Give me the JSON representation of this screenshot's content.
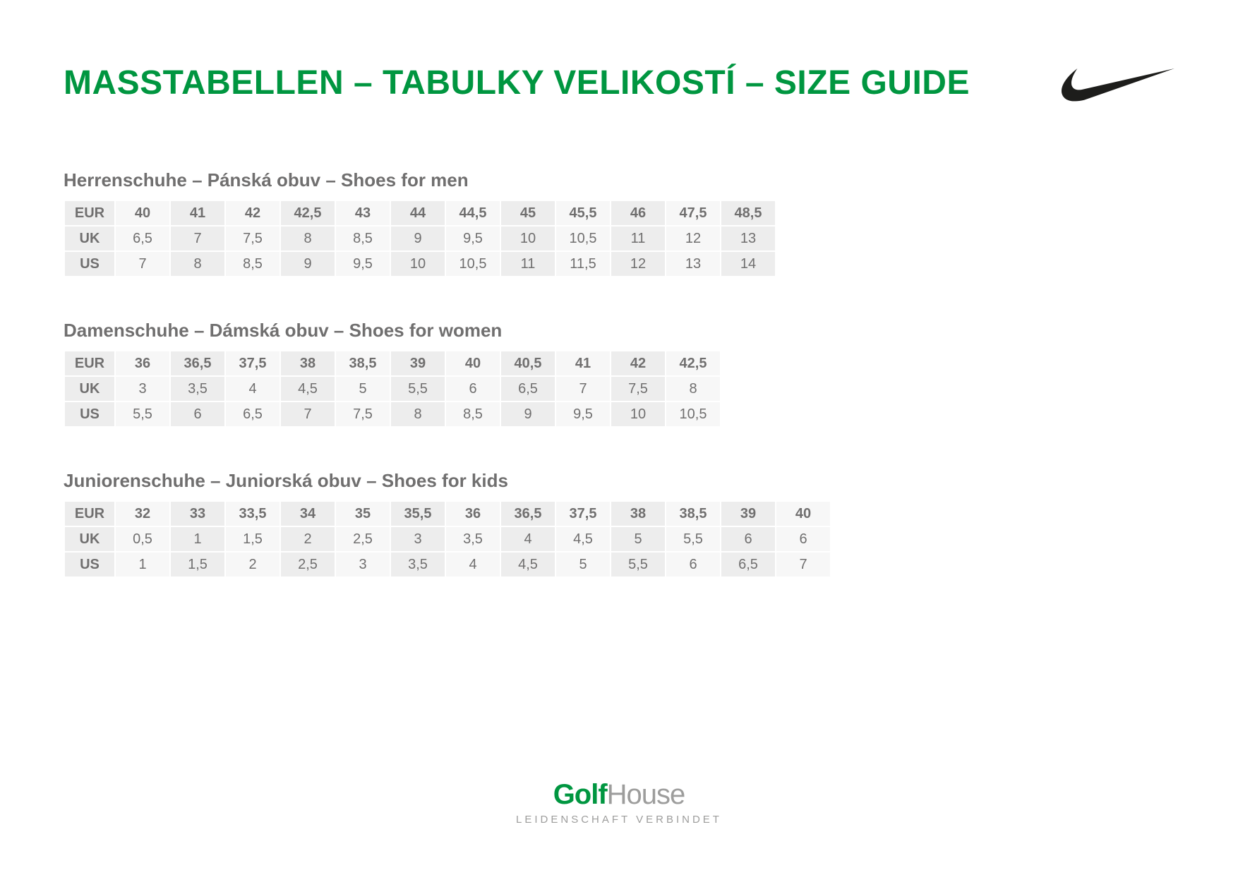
{
  "colors": {
    "accent_green": "#009640",
    "text_dark": "#706f6f",
    "text_gray": "#706f6f",
    "cell_bg_a": "#ededed",
    "cell_bg_b": "#f7f7f7",
    "footer_gray": "#9d9d9c",
    "swoosh": "#1d1d1b"
  },
  "title": "MASSTABELLEN – TABULKY VELIKOSTÍ – SIZE GUIDE",
  "tables": [
    {
      "title": "Herrenschuhe – Pánská obuv – Shoes for men",
      "rows": [
        [
          "EUR",
          "40",
          "41",
          "42",
          "42,5",
          "43",
          "44",
          "44,5",
          "45",
          "45,5",
          "46",
          "47,5",
          "48,5"
        ],
        [
          "UK",
          "6,5",
          "7",
          "7,5",
          "8",
          "8,5",
          "9",
          "9,5",
          "10",
          "10,5",
          "11",
          "12",
          "13"
        ],
        [
          "US",
          "7",
          "8",
          "8,5",
          "9",
          "9,5",
          "10",
          "10,5",
          "11",
          "11,5",
          "12",
          "13",
          "14"
        ]
      ]
    },
    {
      "title": "Damenschuhe – Dámská obuv – Shoes for women",
      "rows": [
        [
          "EUR",
          "36",
          "36,5",
          "37,5",
          "38",
          "38,5",
          "39",
          "40",
          "40,5",
          "41",
          "42",
          "42,5"
        ],
        [
          "UK",
          "3",
          "3,5",
          "4",
          "4,5",
          "5",
          "5,5",
          "6",
          "6,5",
          "7",
          "7,5",
          "8"
        ],
        [
          "US",
          "5,5",
          "6",
          "6,5",
          "7",
          "7,5",
          "8",
          "8,5",
          "9",
          "9,5",
          "10",
          "10,5"
        ]
      ]
    },
    {
      "title": "Juniorenschuhe – Juniorská obuv – Shoes for kids",
      "rows": [
        [
          "EUR",
          "32",
          "33",
          "33,5",
          "34",
          "35",
          "35,5",
          "36",
          "36,5",
          "37,5",
          "38",
          "38,5",
          "39",
          "40"
        ],
        [
          "UK",
          "0,5",
          "1",
          "1,5",
          "2",
          "2,5",
          "3",
          "3,5",
          "4",
          "4,5",
          "5",
          "5,5",
          "6",
          "6"
        ],
        [
          "US",
          "1",
          "1,5",
          "2",
          "2,5",
          "3",
          "3,5",
          "4",
          "4,5",
          "5",
          "5,5",
          "6",
          "6,5",
          "7"
        ]
      ]
    }
  ],
  "footer": {
    "brand_bold": "Golf",
    "brand_light": "House",
    "tagline": "LEIDENSCHAFT VERBINDET"
  }
}
